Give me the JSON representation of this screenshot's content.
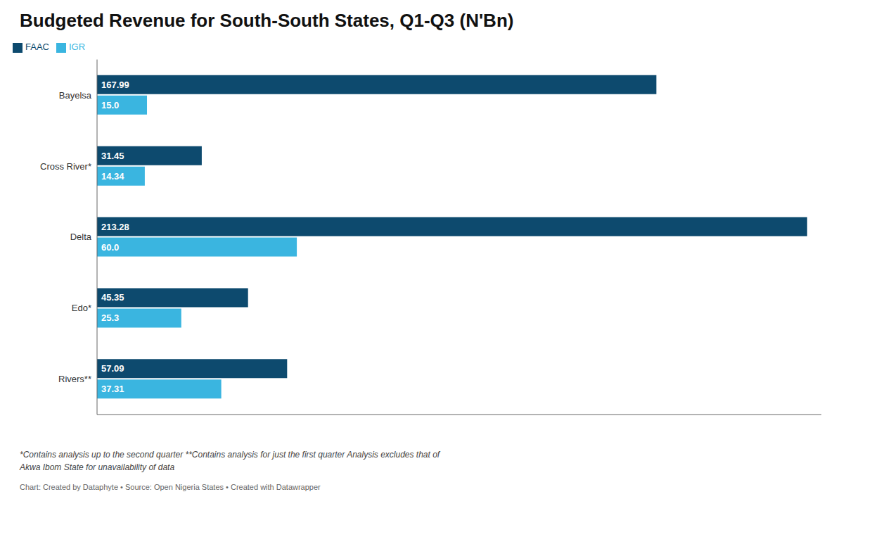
{
  "chart_data": {
    "type": "bar",
    "orientation": "horizontal",
    "title": "Budgeted Revenue for South-South States, Q1-Q3 (N'Bn)",
    "categories": [
      "Bayelsa",
      "Cross River*",
      "Delta",
      "Edo*",
      "Rivers**"
    ],
    "series": [
      {
        "name": "FAAC",
        "color": "#0d4a6e",
        "values": [
          167.99,
          31.45,
          213.28,
          45.35,
          57.09
        ]
      },
      {
        "name": "IGR",
        "color": "#3ab5e0",
        "values": [
          15.0,
          14.34,
          60.0,
          25.3,
          37.31
        ],
        "value_labels": [
          "15.0",
          "14.34",
          "60.0",
          "25.3",
          "37.31"
        ]
      }
    ],
    "xlim": [
      0,
      217.5456
    ],
    "data_labels": true,
    "tick_labels": "y",
    "grid": false,
    "legend": "upper left",
    "annotations": [
      "*Contains analysis up to the second quarter **Contains analysis for just the first quarter Analysis excludes that of",
      "Akwa Ibom State for unavailability of data",
      "Chart: Created by Dataphyte • Source: Open Nigeria States • Created with Datawrapper"
    ]
  }
}
